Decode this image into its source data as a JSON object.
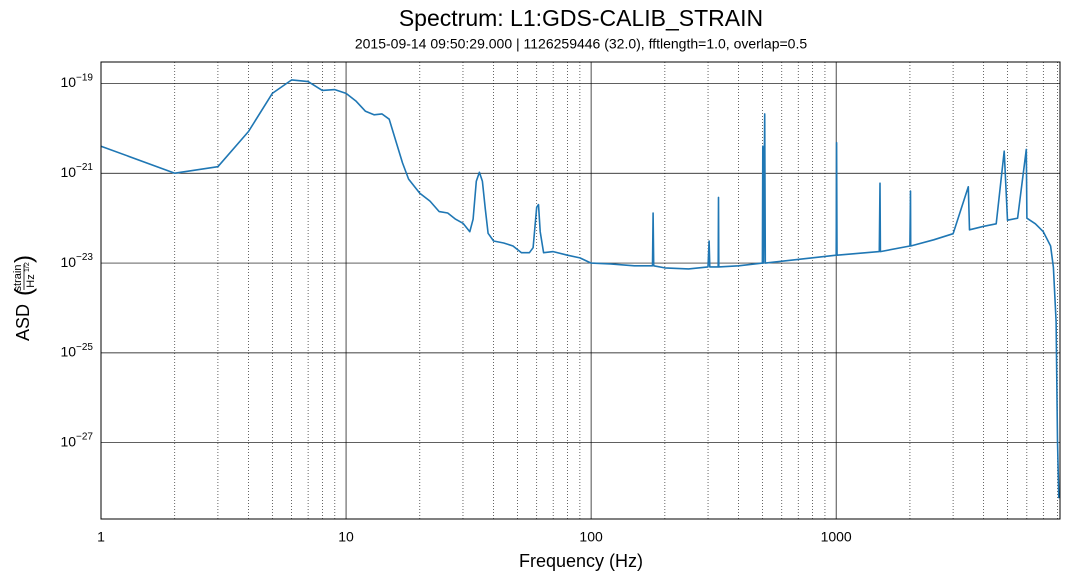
{
  "chart_data": {
    "type": "line",
    "title": "Spectrum: L1:GDS-CALIB_STRAIN",
    "subtitle": "2015-09-14 09:50:29.000 | 1126259446 (32.0), fftlength=1.0, overlap=0.5",
    "xlabel": "Frequency (Hz)",
    "ylabel": {
      "text": "ASD",
      "numerator": "strain",
      "denominator": "Hz",
      "exponent": "1/2"
    },
    "xscale": "log",
    "yscale": "log",
    "grid": true,
    "xlim": [
      1,
      8192
    ],
    "ylim": [
      2e-29,
      3e-19
    ],
    "xticks": [
      1,
      10,
      100,
      1000
    ],
    "xminorticks": [
      2,
      3,
      4,
      5,
      6,
      7,
      8,
      9,
      20,
      30,
      40,
      50,
      60,
      70,
      80,
      90,
      200,
      300,
      400,
      500,
      600,
      700,
      800,
      900,
      2000,
      3000,
      4000,
      5000,
      6000,
      7000,
      8000
    ],
    "yticks": [
      {
        "value": 1e-27,
        "label": "10−27"
      },
      {
        "value": 1e-25,
        "label": "10−25"
      },
      {
        "value": 1e-23,
        "label": "10−23"
      },
      {
        "value": 1e-21,
        "label": "10−21"
      },
      {
        "value": 1e-19,
        "label": "10−19"
      }
    ],
    "x": [
      1,
      2,
      3,
      4,
      5,
      6,
      7,
      8,
      9,
      10,
      11,
      12,
      13,
      14,
      15,
      16,
      17,
      18,
      20,
      22,
      24,
      26,
      28,
      30,
      32,
      33,
      34,
      35,
      36,
      37,
      38,
      40,
      44,
      48,
      52,
      56,
      58,
      60,
      61,
      62,
      64,
      70,
      80,
      90,
      100,
      120,
      150,
      178,
      179,
      180,
      200,
      250,
      300,
      303,
      305,
      330,
      331,
      332,
      400,
      500,
      502,
      505,
      511,
      514,
      1000,
      1004,
      1008,
      1500,
      1510,
      1515,
      2000,
      2010,
      2015,
      2500,
      3000,
      3460,
      3500,
      4000,
      4500,
      4850,
      5000,
      5500,
      5970,
      6000,
      6500,
      7000,
      7500,
      7700,
      7900,
      8000,
      8100
    ],
    "series": [
      {
        "name": "L1:GDS-CALIB_STRAIN",
        "color": "#1f77b4",
        "values": [
          4e-21,
          1e-21,
          1.4e-21,
          8.5e-21,
          6e-20,
          1.2e-19,
          1.1e-19,
          7e-20,
          7.3e-20,
          6e-20,
          4e-20,
          2.4e-20,
          2e-20,
          2.1e-20,
          1.6e-20,
          5e-21,
          1.7e-21,
          7.4e-22,
          3.6e-22,
          2.4e-22,
          1.4e-22,
          1.3e-22,
          9.5e-23,
          7.7e-23,
          5e-23,
          9.5e-23,
          6.6e-22,
          1.05e-21,
          6.6e-22,
          1.6e-22,
          4.6e-23,
          3.1e-23,
          2.8e-23,
          2.4e-23,
          1.7e-23,
          1.7e-23,
          2.2e-23,
          1.75e-22,
          2e-22,
          5e-23,
          1.7e-23,
          1.8e-23,
          1.5e-23,
          1.3e-23,
          1e-23,
          9.6e-24,
          8.7e-24,
          8.7e-24,
          1.3e-22,
          8.7e-24,
          7.8e-24,
          7.4e-24,
          8.2e-24,
          3.1e-23,
          8.2e-24,
          8.2e-24,
          2.9e-22,
          8.2e-24,
          8.7e-24,
          1e-23,
          4e-21,
          1e-23,
          2.1e-20,
          1e-23,
          1.5e-23,
          4.8e-21,
          1.5e-23,
          1.8e-23,
          6e-22,
          1.8e-23,
          2.4e-23,
          4e-22,
          2.4e-23,
          3.3e-23,
          4.5e-23,
          5e-22,
          5.5e-23,
          6.6e-23,
          7.5e-23,
          3.1e-21,
          9e-23,
          1e-22,
          3.4e-21,
          1e-22,
          7.5e-23,
          5e-23,
          2.4e-23,
          8e-24,
          5e-25,
          1.1e-27,
          5.8e-29
        ]
      }
    ]
  }
}
